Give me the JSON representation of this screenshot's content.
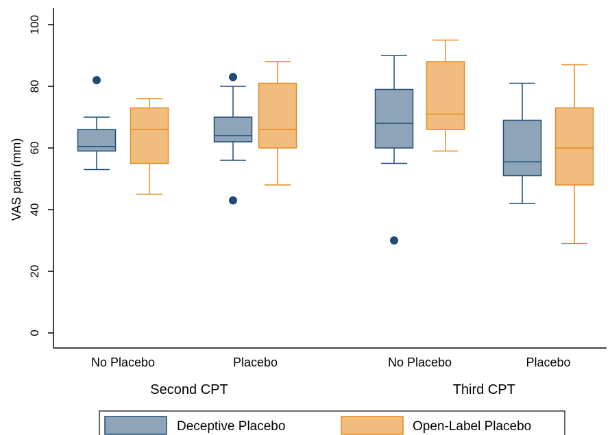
{
  "chart_data": {
    "type": "box",
    "ylabel": "VAS pain (mm)",
    "ylim": [
      0,
      100
    ],
    "yticks": [
      0,
      20,
      40,
      60,
      80,
      100
    ],
    "groups": [
      {
        "label": "Second CPT",
        "categories": [
          {
            "label": "No Placebo",
            "boxes": [
              {
                "series": "Deceptive Placebo",
                "whisker_low": 53,
                "q1": 59,
                "median": 60.5,
                "q3": 66,
                "whisker_high": 70,
                "outliers": [
                  82
                ]
              },
              {
                "series": "Open-Label Placebo",
                "whisker_low": 45,
                "q1": 55,
                "median": 66,
                "q3": 73,
                "whisker_high": 76,
                "outliers": []
              }
            ]
          },
          {
            "label": "Placebo",
            "boxes": [
              {
                "series": "Deceptive Placebo",
                "whisker_low": 56,
                "q1": 62,
                "median": 64,
                "q3": 70,
                "whisker_high": 80,
                "outliers": [
                  83,
                  43
                ]
              },
              {
                "series": "Open-Label Placebo",
                "whisker_low": 48,
                "q1": 60,
                "median": 66,
                "q3": 81,
                "whisker_high": 88,
                "outliers": []
              }
            ]
          }
        ]
      },
      {
        "label": "Third CPT",
        "categories": [
          {
            "label": "No Placebo",
            "boxes": [
              {
                "series": "Deceptive Placebo",
                "whisker_low": 55,
                "q1": 60,
                "median": 68,
                "q3": 79,
                "whisker_high": 90,
                "outliers": [
                  30
                ]
              },
              {
                "series": "Open-Label Placebo",
                "whisker_low": 59,
                "q1": 66,
                "median": 71,
                "q3": 88,
                "whisker_high": 95,
                "outliers": []
              }
            ]
          },
          {
            "label": "Placebo",
            "boxes": [
              {
                "series": "Deceptive Placebo",
                "whisker_low": 42,
                "q1": 51,
                "median": 55.5,
                "q3": 69,
                "whisker_high": 81,
                "outliers": []
              },
              {
                "series": "Open-Label Placebo",
                "whisker_low": 29,
                "q1": 48,
                "median": 60,
                "q3": 73,
                "whisker_high": 87,
                "outliers": []
              }
            ]
          }
        ]
      }
    ],
    "series": [
      {
        "name": "Deceptive Placebo",
        "fill": "#8ea4b9",
        "stroke": "#1f4a73"
      },
      {
        "name": "Open-Label Placebo",
        "fill": "#f0bd7e",
        "stroke": "#e58a1d"
      }
    ],
    "legend_position": "bottom",
    "grid": false
  }
}
